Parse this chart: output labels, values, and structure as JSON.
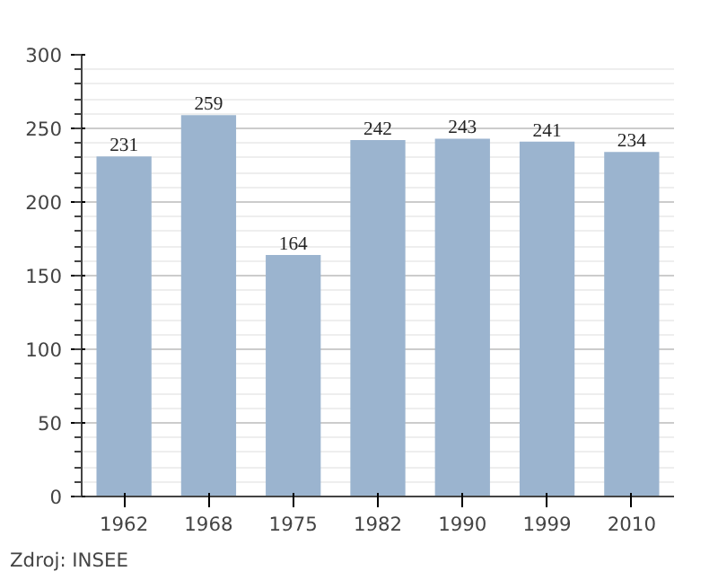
{
  "chart_data": {
    "type": "bar",
    "categories": [
      "1962",
      "1968",
      "1975",
      "1982",
      "1990",
      "1999",
      "2010"
    ],
    "values": [
      231,
      259,
      164,
      242,
      243,
      241,
      234
    ],
    "color": "#9bb4cf",
    "ylim": [
      0,
      300
    ],
    "yticks": [
      0,
      50,
      100,
      150,
      200,
      250,
      300
    ],
    "grid": "y",
    "data_labels": true,
    "annotations": [
      "Zdroj: INSEE"
    ]
  }
}
